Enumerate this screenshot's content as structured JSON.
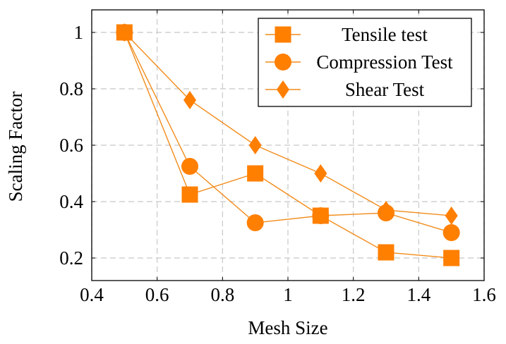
{
  "chart_data": {
    "type": "line",
    "xlabel": "Mesh Size",
    "ylabel": "Scaling Factor",
    "xlim": [
      0.4,
      1.6
    ],
    "ylim": [
      0.12,
      1.08
    ],
    "xticks": [
      0.4,
      0.6,
      0.8,
      1,
      1.2,
      1.4,
      1.6
    ],
    "xtick_labels": [
      "0.4",
      "0.6",
      "0.8",
      "1",
      "1.2",
      "1.4",
      "1.6"
    ],
    "yticks": [
      0.2,
      0.4,
      0.6,
      0.8,
      1
    ],
    "ytick_labels": [
      "0.2",
      "0.4",
      "0.6",
      "0.8",
      "1"
    ],
    "grid": true,
    "legend_position": "top-right",
    "line_color": "#F28C1B",
    "marker_color": "#FF7F00",
    "series": [
      {
        "name": "Tensile test",
        "marker": "square",
        "x": [
          0.5,
          0.7,
          0.9,
          1.1,
          1.3,
          1.5
        ],
        "y": [
          1.0,
          0.425,
          0.5,
          0.35,
          0.22,
          0.2
        ]
      },
      {
        "name": "Compression Test",
        "marker": "circle",
        "x": [
          0.5,
          0.7,
          0.9,
          1.1,
          1.3,
          1.5
        ],
        "y": [
          1.0,
          0.525,
          0.325,
          0.35,
          0.36,
          0.29
        ]
      },
      {
        "name": "Shear Test",
        "marker": "diamond",
        "x": [
          0.5,
          0.7,
          0.9,
          1.1,
          1.3,
          1.5
        ],
        "y": [
          1.0,
          0.76,
          0.6,
          0.5,
          0.37,
          0.35
        ]
      }
    ]
  }
}
